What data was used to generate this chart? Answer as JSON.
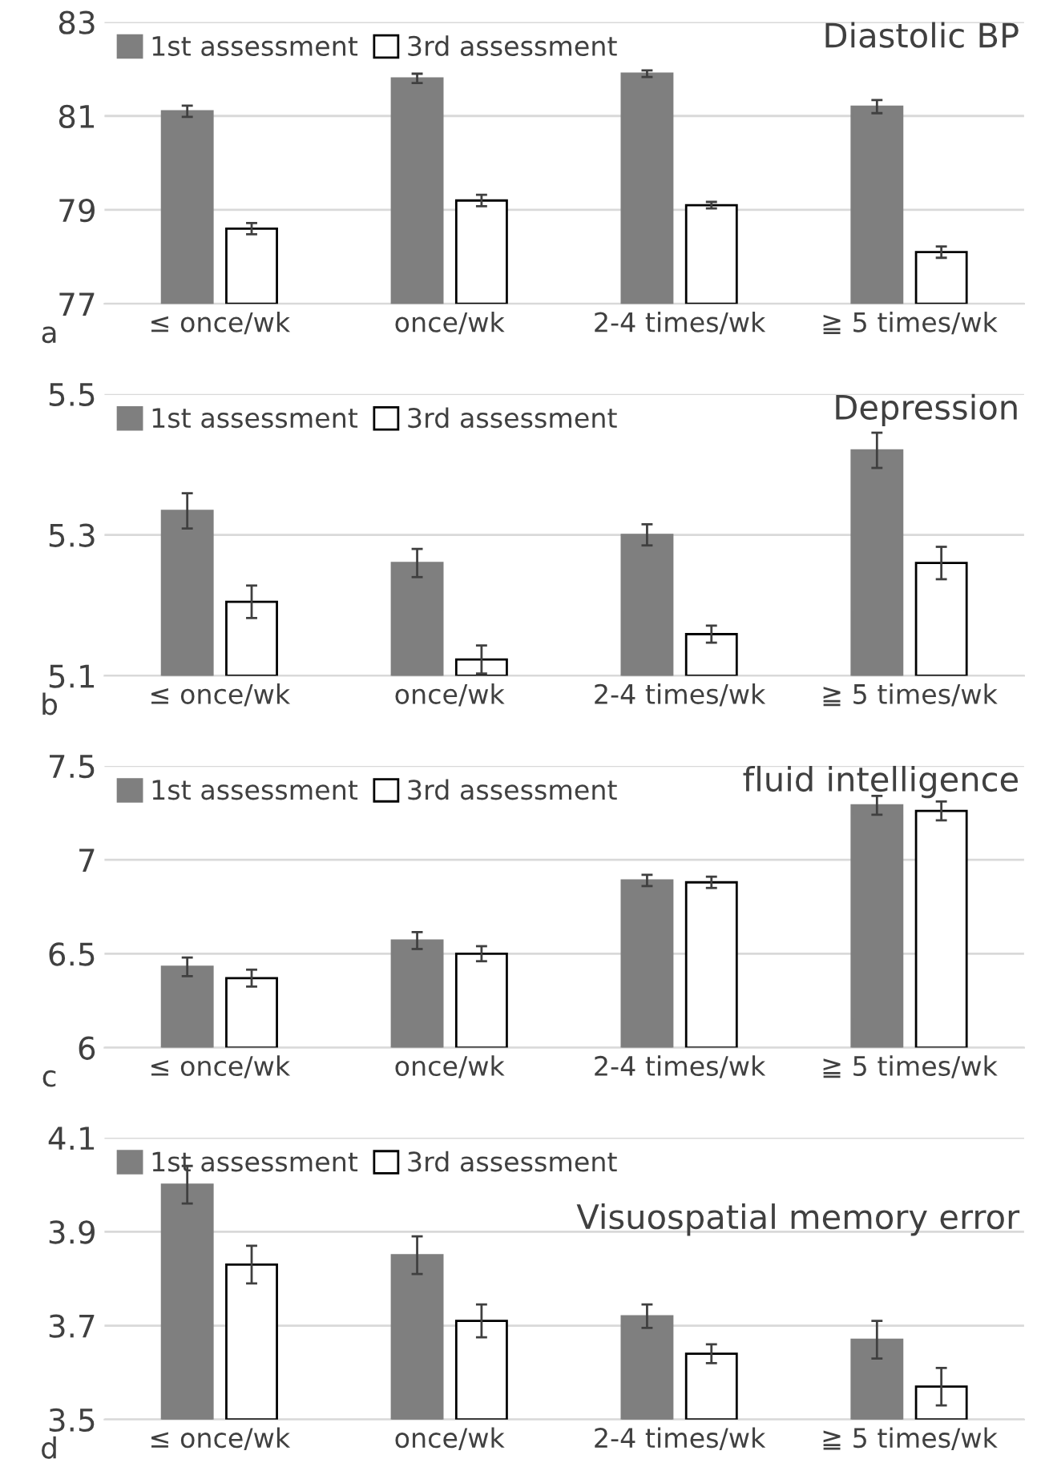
{
  "chart_data": [
    {
      "type": "bar",
      "title": "Diastolic BP",
      "categories": [
        "≤ once/wk",
        "once/wk",
        "2-4 times/wk",
        "≧ 5 times/wk"
      ],
      "ylim": [
        77,
        83
      ],
      "yticks": [
        77,
        79,
        81,
        83
      ],
      "grid": "y",
      "legend": "top left",
      "annotations": [
        "a"
      ],
      "series": [
        {
          "name": "1st assessment",
          "color": "#7f7f7f",
          "values": [
            81.1,
            81.8,
            81.9,
            81.2
          ],
          "errors": [
            0.12,
            0.1,
            0.07,
            0.14
          ]
        },
        {
          "name": "3rd assessment",
          "color": "#ffffff",
          "values": [
            78.6,
            79.2,
            79.1,
            78.1
          ],
          "errors": [
            0.12,
            0.12,
            0.07,
            0.12
          ]
        }
      ]
    },
    {
      "type": "bar",
      "title": "Depression",
      "categories": [
        "≤ once/wk",
        "once/wk",
        "2-4 times/wk",
        "≧ 5 times/wk"
      ],
      "ylim": [
        5.1,
        5.5
      ],
      "yticks": [
        5.1,
        5.3,
        5.5
      ],
      "grid": "y",
      "legend": "top left",
      "annotations": [
        "b"
      ],
      "series": [
        {
          "name": "1st assessment",
          "color": "#7f7f7f",
          "values": [
            5.334,
            5.26,
            5.3,
            5.42
          ],
          "errors": [
            0.025,
            0.02,
            0.015,
            0.025
          ]
        },
        {
          "name": "3rd assessment",
          "color": "#ffffff",
          "values": [
            5.205,
            5.123,
            5.159,
            5.26
          ],
          "errors": [
            0.023,
            0.02,
            0.012,
            0.023
          ]
        }
      ]
    },
    {
      "type": "bar",
      "title": "fluid intelligence",
      "categories": [
        "≤ once/wk",
        "once/wk",
        "2-4 times/wk",
        "≧ 5 times/wk"
      ],
      "ylim": [
        6,
        7.5
      ],
      "yticks": [
        6,
        6.5,
        7,
        7.5
      ],
      "grid": "y",
      "legend": "top left",
      "annotations": [
        "c"
      ],
      "series": [
        {
          "name": "1st assessment",
          "color": "#7f7f7f",
          "values": [
            6.43,
            6.57,
            6.89,
            7.29
          ],
          "errors": [
            0.05,
            0.045,
            0.03,
            0.05
          ]
        },
        {
          "name": "3rd assessment",
          "color": "#ffffff",
          "values": [
            6.37,
            6.5,
            6.88,
            7.26
          ],
          "errors": [
            0.045,
            0.04,
            0.03,
            0.05
          ]
        }
      ]
    },
    {
      "type": "bar",
      "title": "Visuospatial memory error",
      "categories": [
        "≤ once/wk",
        "once/wk",
        "2-4 times/wk",
        "≧ 5 times/wk"
      ],
      "ylim": [
        3.5,
        4.1
      ],
      "yticks": [
        3.5,
        3.7,
        3.9,
        4.1
      ],
      "grid": "y",
      "legend": "top left",
      "annotations": [
        "d"
      ],
      "series": [
        {
          "name": "1st assessment",
          "color": "#7f7f7f",
          "values": [
            4.0,
            3.85,
            3.72,
            3.67
          ],
          "errors": [
            0.04,
            0.04,
            0.025,
            0.04
          ]
        },
        {
          "name": "3rd assessment",
          "color": "#ffffff",
          "values": [
            3.83,
            3.71,
            3.64,
            3.57
          ],
          "errors": [
            0.04,
            0.035,
            0.02,
            0.04
          ]
        }
      ]
    }
  ]
}
